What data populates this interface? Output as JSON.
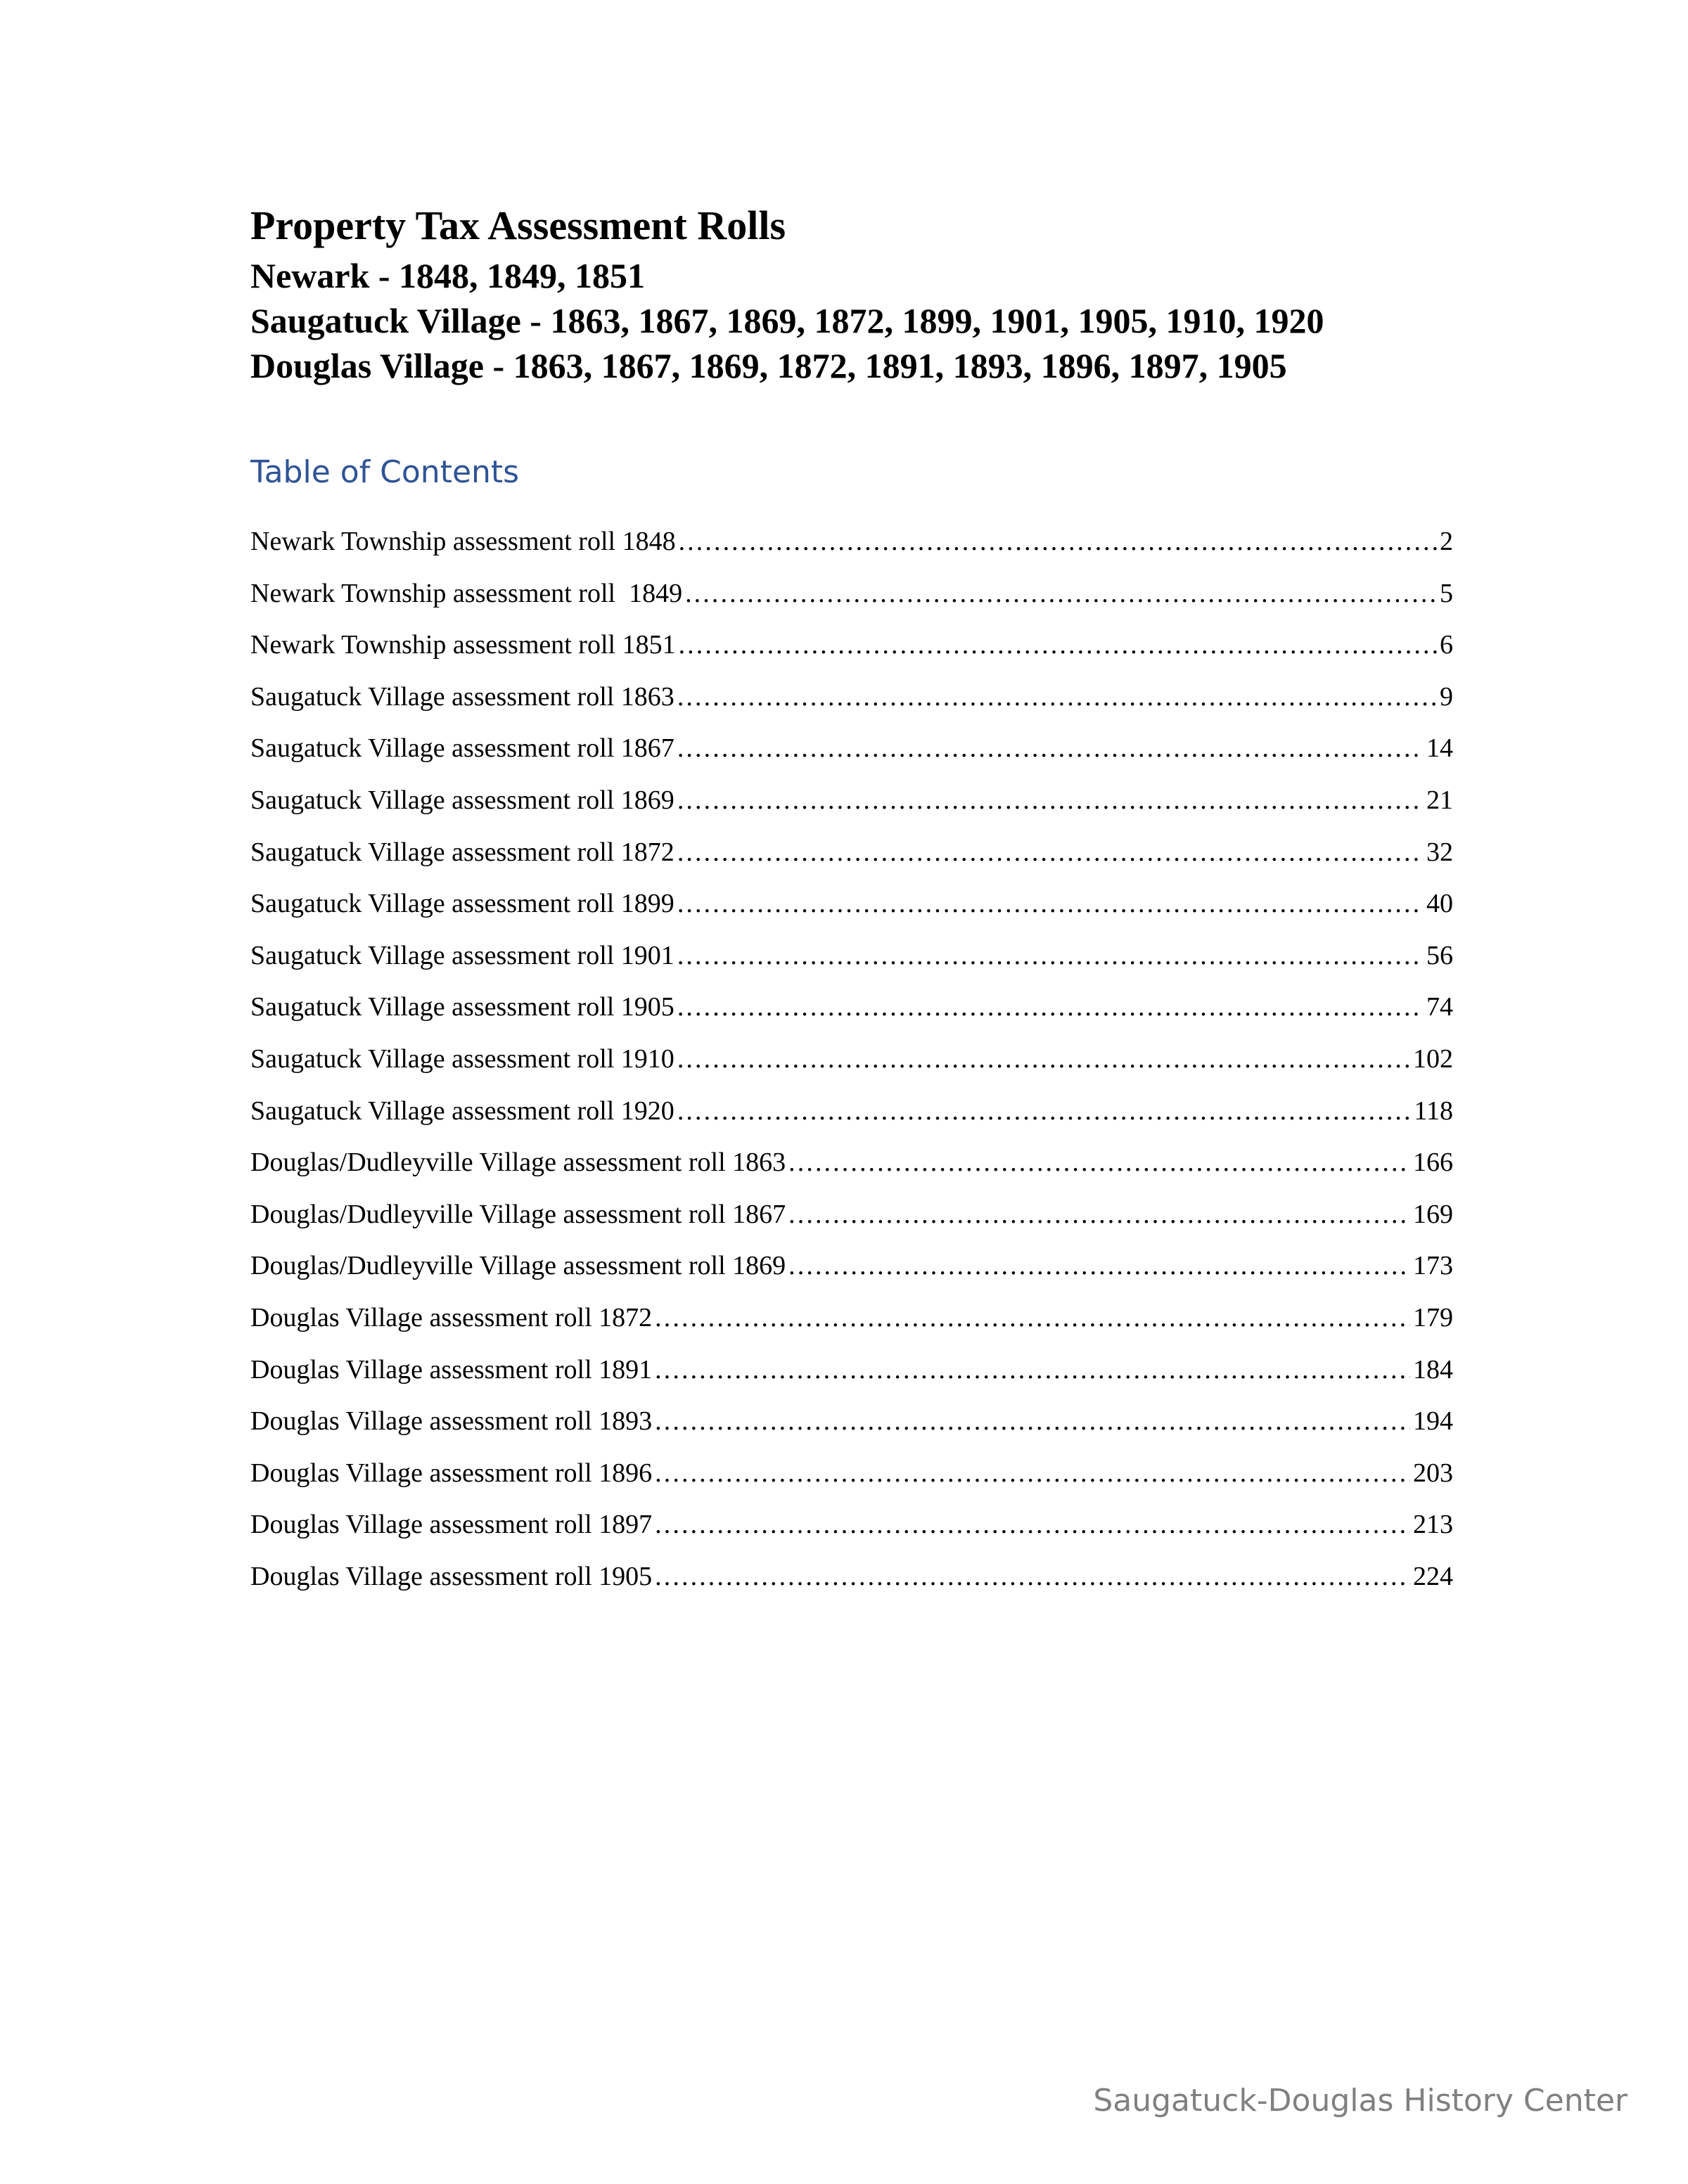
{
  "header": {
    "title": "Property Tax Assessment Rolls",
    "subtitles": [
      "Newark - 1848, 1849, 1851",
      "Saugatuck Village - 1863, 1867, 1869, 1872, 1899, 1901, 1905, 1910, 1920",
      "Douglas Village - 1863, 1867, 1869, 1872, 1891, 1893, 1896, 1897, 1905"
    ]
  },
  "toc": {
    "heading": "Table of Contents",
    "heading_color": "#2f5496",
    "entries": [
      {
        "label": "Newark Township assessment roll 1848",
        "page": "2"
      },
      {
        "label": "Newark Township assessment roll  1849",
        "page": "5"
      },
      {
        "label": "Newark Township assessment roll 1851",
        "page": "6"
      },
      {
        "label": "Saugatuck Village assessment roll 1863",
        "page": "9"
      },
      {
        "label": "Saugatuck Village assessment roll 1867",
        "page": "14"
      },
      {
        "label": "Saugatuck Village assessment roll 1869",
        "page": "21"
      },
      {
        "label": "Saugatuck Village assessment roll 1872",
        "page": "32"
      },
      {
        "label": "Saugatuck Village assessment roll 1899",
        "page": "40"
      },
      {
        "label": "Saugatuck Village assessment roll 1901",
        "page": "56"
      },
      {
        "label": "Saugatuck Village assessment roll 1905",
        "page": "74"
      },
      {
        "label": "Saugatuck Village assessment roll 1910",
        "page": "102"
      },
      {
        "label": "Saugatuck Village assessment roll 1920",
        "page": "118"
      },
      {
        "label": "Douglas/Dudleyville Village assessment roll 1863",
        "page": "166"
      },
      {
        "label": "Douglas/Dudleyville Village assessment roll 1867",
        "page": "169"
      },
      {
        "label": "Douglas/Dudleyville Village assessment roll 1869",
        "page": "173"
      },
      {
        "label": "Douglas Village assessment roll 1872",
        "page": "179"
      },
      {
        "label": "Douglas Village assessment roll 1891",
        "page": "184"
      },
      {
        "label": "Douglas Village assessment roll 1893",
        "page": "194"
      },
      {
        "label": "Douglas Village assessment roll 1896",
        "page": "203"
      },
      {
        "label": "Douglas Village assessment roll 1897",
        "page": "213"
      },
      {
        "label": "Douglas Village assessment roll 1905",
        "page": "224"
      }
    ]
  },
  "footer": {
    "text": "Saugatuck-Douglas History Center",
    "color": "#808080"
  }
}
